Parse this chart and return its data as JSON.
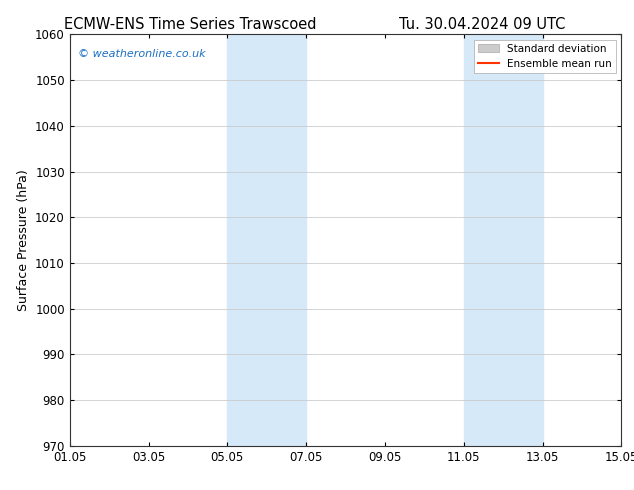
{
  "title_left": "ECMW-ENS Time Series Trawscoed",
  "title_right": "Tu. 30.04.2024 09 UTC",
  "ylabel": "Surface Pressure (hPa)",
  "ylim": [
    970,
    1060
  ],
  "yticks": [
    970,
    980,
    990,
    1000,
    1010,
    1020,
    1030,
    1040,
    1050,
    1060
  ],
  "x_min": 0,
  "x_max": 14,
  "xtick_labels": [
    "01.05",
    "03.05",
    "05.05",
    "07.05",
    "09.05",
    "11.05",
    "13.05",
    "15.05"
  ],
  "xtick_positions": [
    0,
    2,
    4,
    6,
    8,
    10,
    12,
    14
  ],
  "shaded_bands": [
    {
      "xstart": 4,
      "xend": 6
    },
    {
      "xstart": 10,
      "xend": 12
    }
  ],
  "shade_color": "#d6e9f8",
  "watermark_text": "© weatheronline.co.uk",
  "watermark_color": "#1a6fc4",
  "legend_std_label": "Standard deviation",
  "legend_mean_label": "Ensemble mean run",
  "legend_std_color": "#cccccc",
  "legend_std_edge": "#aaaaaa",
  "legend_mean_color": "#ff3300",
  "bg_color": "#ffffff",
  "grid_color": "#cccccc",
  "spine_color": "#333333",
  "title_fontsize": 10.5,
  "axis_label_fontsize": 9,
  "tick_fontsize": 8.5,
  "watermark_fontsize": 8,
  "legend_fontsize": 7.5
}
